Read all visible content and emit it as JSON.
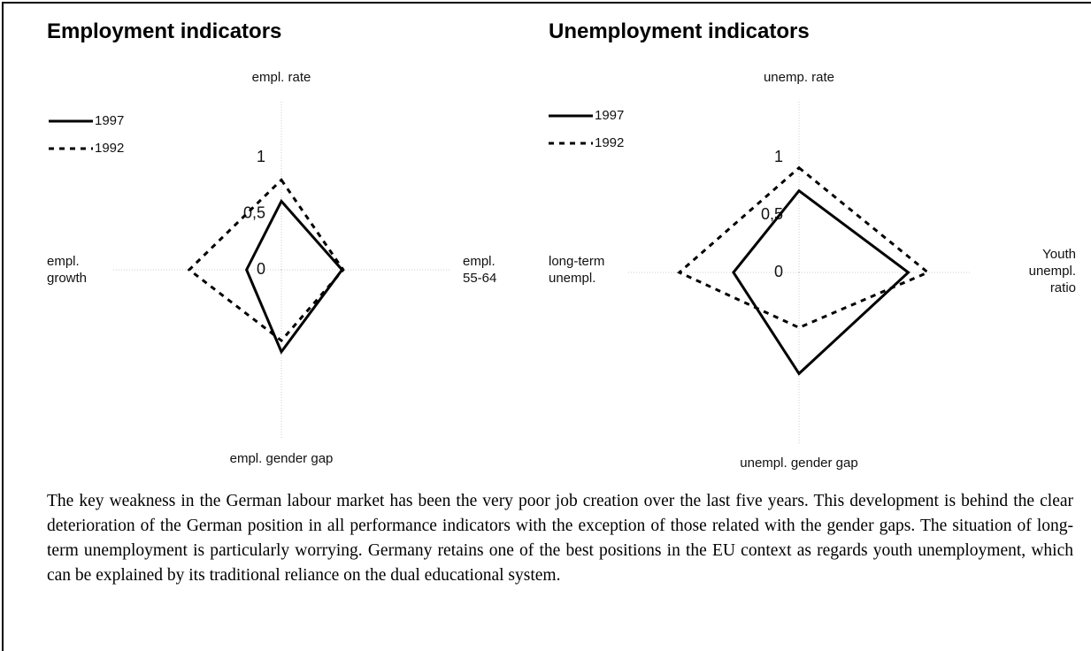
{
  "chart_data": [
    {
      "type": "radar",
      "title": "Employment indicators",
      "axes": [
        "empl. rate",
        "empl. 55-64",
        "empl. gender gap",
        "empl. growth"
      ],
      "rlim": [
        0,
        1.5
      ],
      "rticks": [
        0,
        {
          "value": 0.5,
          "label": "0,5"
        },
        1
      ],
      "series": [
        {
          "name": "1997",
          "color": "#000000",
          "line_style": "solid",
          "values": [
            0.61,
            0.54,
            0.73,
            0.31
          ]
        },
        {
          "name": "1992",
          "color": "#000000",
          "line_style": "dashed",
          "values": [
            0.8,
            0.55,
            0.63,
            0.82
          ]
        }
      ]
    },
    {
      "type": "radar",
      "title": "Unemployment indicators",
      "axes": [
        "unemp. rate",
        "Youth unempl. ratio",
        "unempl. gender gap",
        "long-term unempl."
      ],
      "rlim": [
        0,
        1.5
      ],
      "rticks": [
        0,
        {
          "value": 0.5,
          "label": "0,5"
        },
        1
      ],
      "series": [
        {
          "name": "1997",
          "color": "#000000",
          "line_style": "solid",
          "values": [
            0.71,
            0.95,
            0.88,
            0.57
          ]
        },
        {
          "name": "1992",
          "color": "#000000",
          "line_style": "dashed",
          "values": [
            0.91,
            1.12,
            0.48,
            1.04
          ]
        }
      ]
    }
  ],
  "paragraph": "The key weakness in the German labour market has been the very poor job creation over the last five years. This development is behind the clear deterioration of the German position in all performance indicators with the exception of those related with the gender gaps. The situation of long-term unemployment is particularly worrying. Germany retains one of the best positions in the EU context as regards youth unemployment, which can be explained by its traditional reliance on the dual educational system."
}
